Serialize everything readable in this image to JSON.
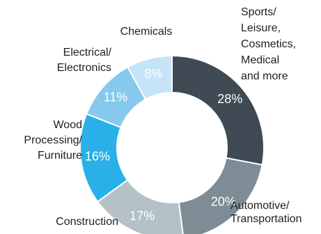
{
  "chart_data": {
    "type": "pie",
    "donut": true,
    "categories": [
      "Sports/ Leisure, Cosmetics, Medical and more",
      "Automotive/ Transportation",
      "Construction",
      "Wood Processing/ Furniture",
      "Electrical/ Electronics",
      "Chemicals"
    ],
    "values": [
      28,
      20,
      17,
      16,
      11,
      8
    ],
    "value_labels": [
      "28%",
      "20%",
      "17%",
      "16%",
      "11%",
      "8%"
    ],
    "category_labels": [
      [
        "Sports/",
        "Leisure,",
        "Cosmetics,",
        "Medical",
        "and more"
      ],
      [
        "Automotive/",
        "Transportation"
      ],
      [
        "Construction"
      ],
      [
        "Wood",
        "Processing/",
        "Furniture"
      ],
      [
        "Electrical/",
        "Electronics"
      ],
      [
        "Chemicals"
      ]
    ],
    "colors": [
      "#3f4a55",
      "#7d8c95",
      "#b4c1c7",
      "#2ab0e8",
      "#86c8ee",
      "#c6e4f7"
    ],
    "legend": "none",
    "start_angle_deg": 0,
    "direction": "clockwise"
  }
}
